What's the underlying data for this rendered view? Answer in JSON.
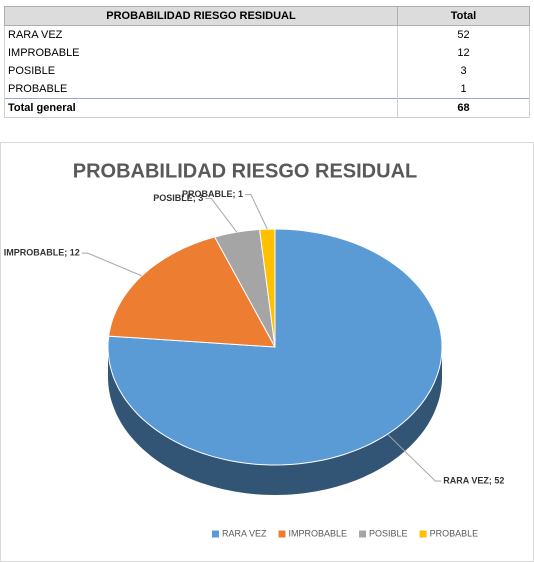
{
  "table": {
    "headers": [
      "PROBABILIDAD RIESGO RESIDUAL",
      "Total"
    ],
    "rows": [
      [
        "RARA VEZ",
        52
      ],
      [
        "IMPROBABLE",
        12
      ],
      [
        "POSIBLE",
        3
      ],
      [
        "PROBABLE",
        1
      ]
    ],
    "total": [
      "Total general",
      68
    ]
  },
  "chart_data": {
    "type": "pie",
    "title": "PROBABILIDAD RIESGO RESIDUAL",
    "categories": [
      "RARA VEZ",
      "IMPROBABLE",
      "POSIBLE",
      "PROBABLE"
    ],
    "values": [
      52,
      12,
      3,
      1
    ],
    "value_labels": [
      "RARA VEZ; 52",
      "IMPROBABLE; 12",
      "POSIBLE; 3",
      "PROBABLE; 1"
    ],
    "colors": [
      "#5b9bd5",
      "#ed7d31",
      "#a5a5a5",
      "#ffc000"
    ],
    "legend": "bottom"
  }
}
